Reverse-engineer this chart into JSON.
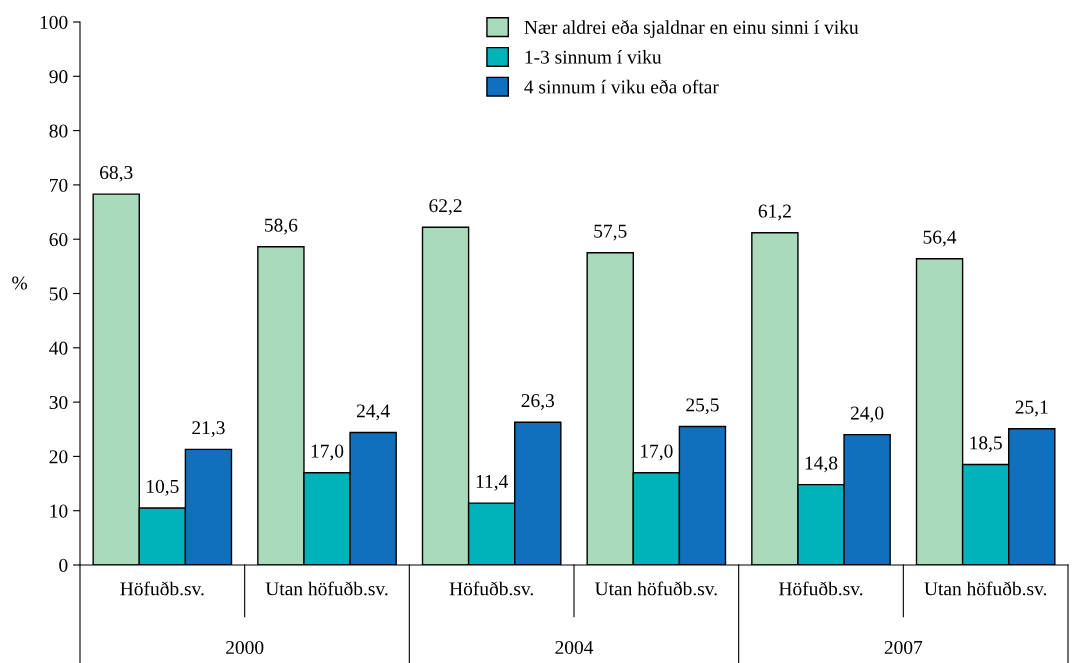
{
  "chart_data": {
    "type": "bar",
    "ylabel": "%",
    "categories": [
      "Höfuðb.sv.",
      "Utan höfuðb.sv.",
      "Höfuðb.sv.",
      "Utan höfuðb.sv.",
      "Höfuðb.sv.",
      "Utan höfuðb.sv."
    ],
    "series": [
      {
        "name": "Nær aldrei eða sjaldnar en einu sinni í viku",
        "color": "#a9dabc",
        "values": [
          68.3,
          58.6,
          62.2,
          57.5,
          61.2,
          56.4
        ],
        "value_labels": [
          "68,3",
          "58,6",
          "62,2",
          "57,5",
          "61,2",
          "56,4"
        ]
      },
      {
        "name": "1-3 sinnum í viku",
        "color": "#00b2b9",
        "values": [
          10.5,
          17.0,
          11.4,
          17.0,
          14.8,
          18.5
        ],
        "value_labels": [
          "10,5",
          "17,0",
          "11,4",
          "17,0",
          "14,8",
          "18,5"
        ]
      },
      {
        "name": "4 sinnum í viku eða oftar",
        "color": "#1070bd",
        "values": [
          21.3,
          24.4,
          26.3,
          25.5,
          24.0,
          25.1
        ],
        "value_labels": [
          "21,3",
          "24,4",
          "26,3",
          "25,5",
          "24,0",
          "25,1"
        ]
      }
    ],
    "annotations": [
      "2000",
      "2004",
      "2007"
    ],
    "ylim": [
      0,
      100
    ],
    "yticks": [
      0,
      10,
      20,
      30,
      40,
      50,
      60,
      70,
      80,
      90,
      100
    ],
    "grid": false,
    "legend": "top"
  }
}
